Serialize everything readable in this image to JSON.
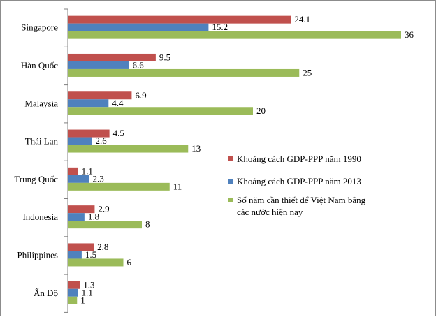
{
  "chart_data": {
    "type": "bar",
    "orientation": "horizontal",
    "categories": [
      "Singapore",
      "Hàn Quốc",
      "Malaysia",
      "Thái Lan",
      "Trung Quốc",
      "Indonesia",
      "Philippines",
      "Ấn Độ"
    ],
    "series": [
      {
        "name": "Khoảng cách GDP-PPP năm 1990",
        "color": "#c0504d",
        "values": [
          24.1,
          9.5,
          6.9,
          4.5,
          1.1,
          2.9,
          2.8,
          1.3
        ],
        "labels": [
          "24.1",
          "9.5",
          "6.9",
          "4.5",
          "1.1",
          "2.9",
          "2.8",
          "1.3"
        ]
      },
      {
        "name": "Khoảng cách GDP-PPP năm 2013",
        "color": "#4f81bd",
        "values": [
          15.2,
          6.6,
          4.4,
          2.6,
          2.3,
          1.8,
          1.5,
          1.1
        ],
        "labels": [
          "15.2",
          "6.6",
          "4.4",
          "2.6",
          "2.3",
          "1.8",
          "1.5",
          "1.1"
        ]
      },
      {
        "name": "Số năm cần thiết để Việt Nam bằng các nước hiện nay",
        "name_lines": [
          "Số năm cần thiết để Việt Nam bằng",
          "các nước hiện nay"
        ],
        "color": "#9bbb59",
        "values": [
          36,
          25,
          20,
          13,
          11,
          8,
          6,
          1
        ],
        "labels": [
          "36",
          "25",
          "20",
          "13",
          "11",
          "8",
          "6",
          "1"
        ]
      }
    ],
    "xlim": [
      0,
      38
    ],
    "grid": false,
    "legend_position": "right"
  }
}
